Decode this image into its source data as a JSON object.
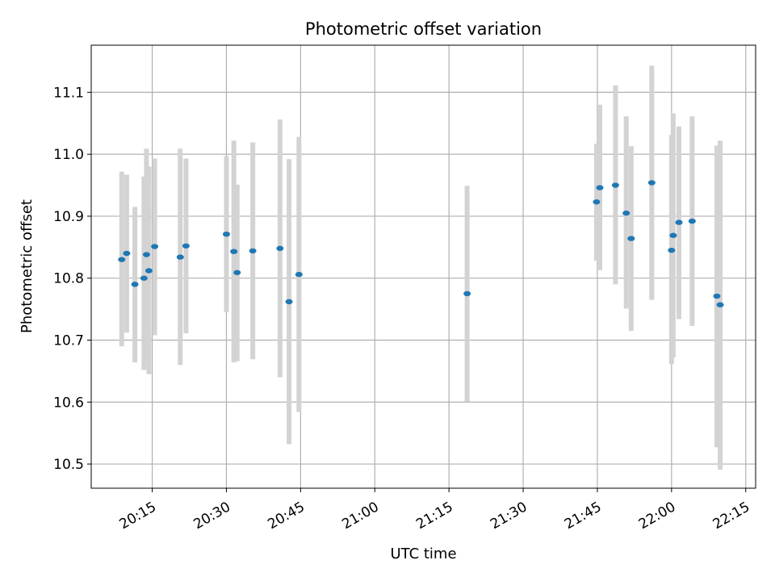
{
  "chart_data": {
    "type": "scatter",
    "title": "Photometric offset variation",
    "xlabel": "UTC time",
    "ylabel": "Photometric offset",
    "x_ticks": [
      "20:15",
      "20:30",
      "20:45",
      "21:00",
      "21:15",
      "21:30",
      "21:45",
      "22:00",
      "22:15"
    ],
    "y_ticks": [
      "10.5",
      "10.6",
      "10.7",
      "10.8",
      "10.9",
      "11.0",
      "11.1"
    ],
    "xlim": [
      "20:02:40",
      "22:17:00"
    ],
    "ylim": [
      10.461,
      11.176
    ],
    "grid": true,
    "colors": {
      "point": "#1f77b4",
      "errorbar": "#d3d3d3",
      "grid": "#b0b0b0"
    },
    "points": [
      {
        "x": "20:08:50",
        "y": 10.83,
        "ylow": 10.69,
        "yhigh": 10.972
      },
      {
        "x": "20:09:50",
        "y": 10.84,
        "ylow": 10.712,
        "yhigh": 10.967
      },
      {
        "x": "20:11:30",
        "y": 10.79,
        "ylow": 10.664,
        "yhigh": 10.915
      },
      {
        "x": "20:13:20",
        "y": 10.8,
        "ylow": 10.652,
        "yhigh": 10.964
      },
      {
        "x": "20:13:50",
        "y": 10.838,
        "ylow": 10.667,
        "yhigh": 11.009
      },
      {
        "x": "20:14:20",
        "y": 10.812,
        "ylow": 10.645,
        "yhigh": 10.98
      },
      {
        "x": "20:15:30",
        "y": 10.851,
        "ylow": 10.708,
        "yhigh": 10.993
      },
      {
        "x": "20:20:40",
        "y": 10.834,
        "ylow": 10.66,
        "yhigh": 11.009
      },
      {
        "x": "20:21:50",
        "y": 10.852,
        "ylow": 10.711,
        "yhigh": 10.993
      },
      {
        "x": "20:30:00",
        "y": 10.871,
        "ylow": 10.745,
        "yhigh": 10.997
      },
      {
        "x": "20:31:30",
        "y": 10.843,
        "ylow": 10.664,
        "yhigh": 11.022
      },
      {
        "x": "20:32:10",
        "y": 10.809,
        "ylow": 10.666,
        "yhigh": 10.951
      },
      {
        "x": "20:35:20",
        "y": 10.844,
        "ylow": 10.669,
        "yhigh": 11.019
      },
      {
        "x": "20:40:50",
        "y": 10.848,
        "ylow": 10.64,
        "yhigh": 11.056
      },
      {
        "x": "20:42:40",
        "y": 10.762,
        "ylow": 10.532,
        "yhigh": 10.992
      },
      {
        "x": "20:44:40",
        "y": 10.806,
        "ylow": 10.584,
        "yhigh": 11.028
      },
      {
        "x": "21:18:40",
        "y": 10.775,
        "ylow": 10.601,
        "yhigh": 10.949
      },
      {
        "x": "21:44:50",
        "y": 10.923,
        "ylow": 10.828,
        "yhigh": 11.017
      },
      {
        "x": "21:45:30",
        "y": 10.946,
        "ylow": 10.813,
        "yhigh": 11.08
      },
      {
        "x": "21:48:40",
        "y": 10.95,
        "ylow": 10.79,
        "yhigh": 11.111
      },
      {
        "x": "21:50:50",
        "y": 10.905,
        "ylow": 10.751,
        "yhigh": 11.061
      },
      {
        "x": "21:51:50",
        "y": 10.864,
        "ylow": 10.715,
        "yhigh": 11.013
      },
      {
        "x": "21:56:00",
        "y": 10.954,
        "ylow": 10.765,
        "yhigh": 11.143
      },
      {
        "x": "22:00:00",
        "y": 10.845,
        "ylow": 10.661,
        "yhigh": 11.031
      },
      {
        "x": "22:00:20",
        "y": 10.869,
        "ylow": 10.672,
        "yhigh": 11.066
      },
      {
        "x": "22:01:30",
        "y": 10.89,
        "ylow": 10.734,
        "yhigh": 11.045
      },
      {
        "x": "22:04:10",
        "y": 10.892,
        "ylow": 10.723,
        "yhigh": 11.061
      },
      {
        "x": "22:09:10",
        "y": 10.771,
        "ylow": 10.527,
        "yhigh": 11.014
      },
      {
        "x": "22:09:50",
        "y": 10.757,
        "ylow": 10.491,
        "yhigh": 11.022
      }
    ]
  }
}
